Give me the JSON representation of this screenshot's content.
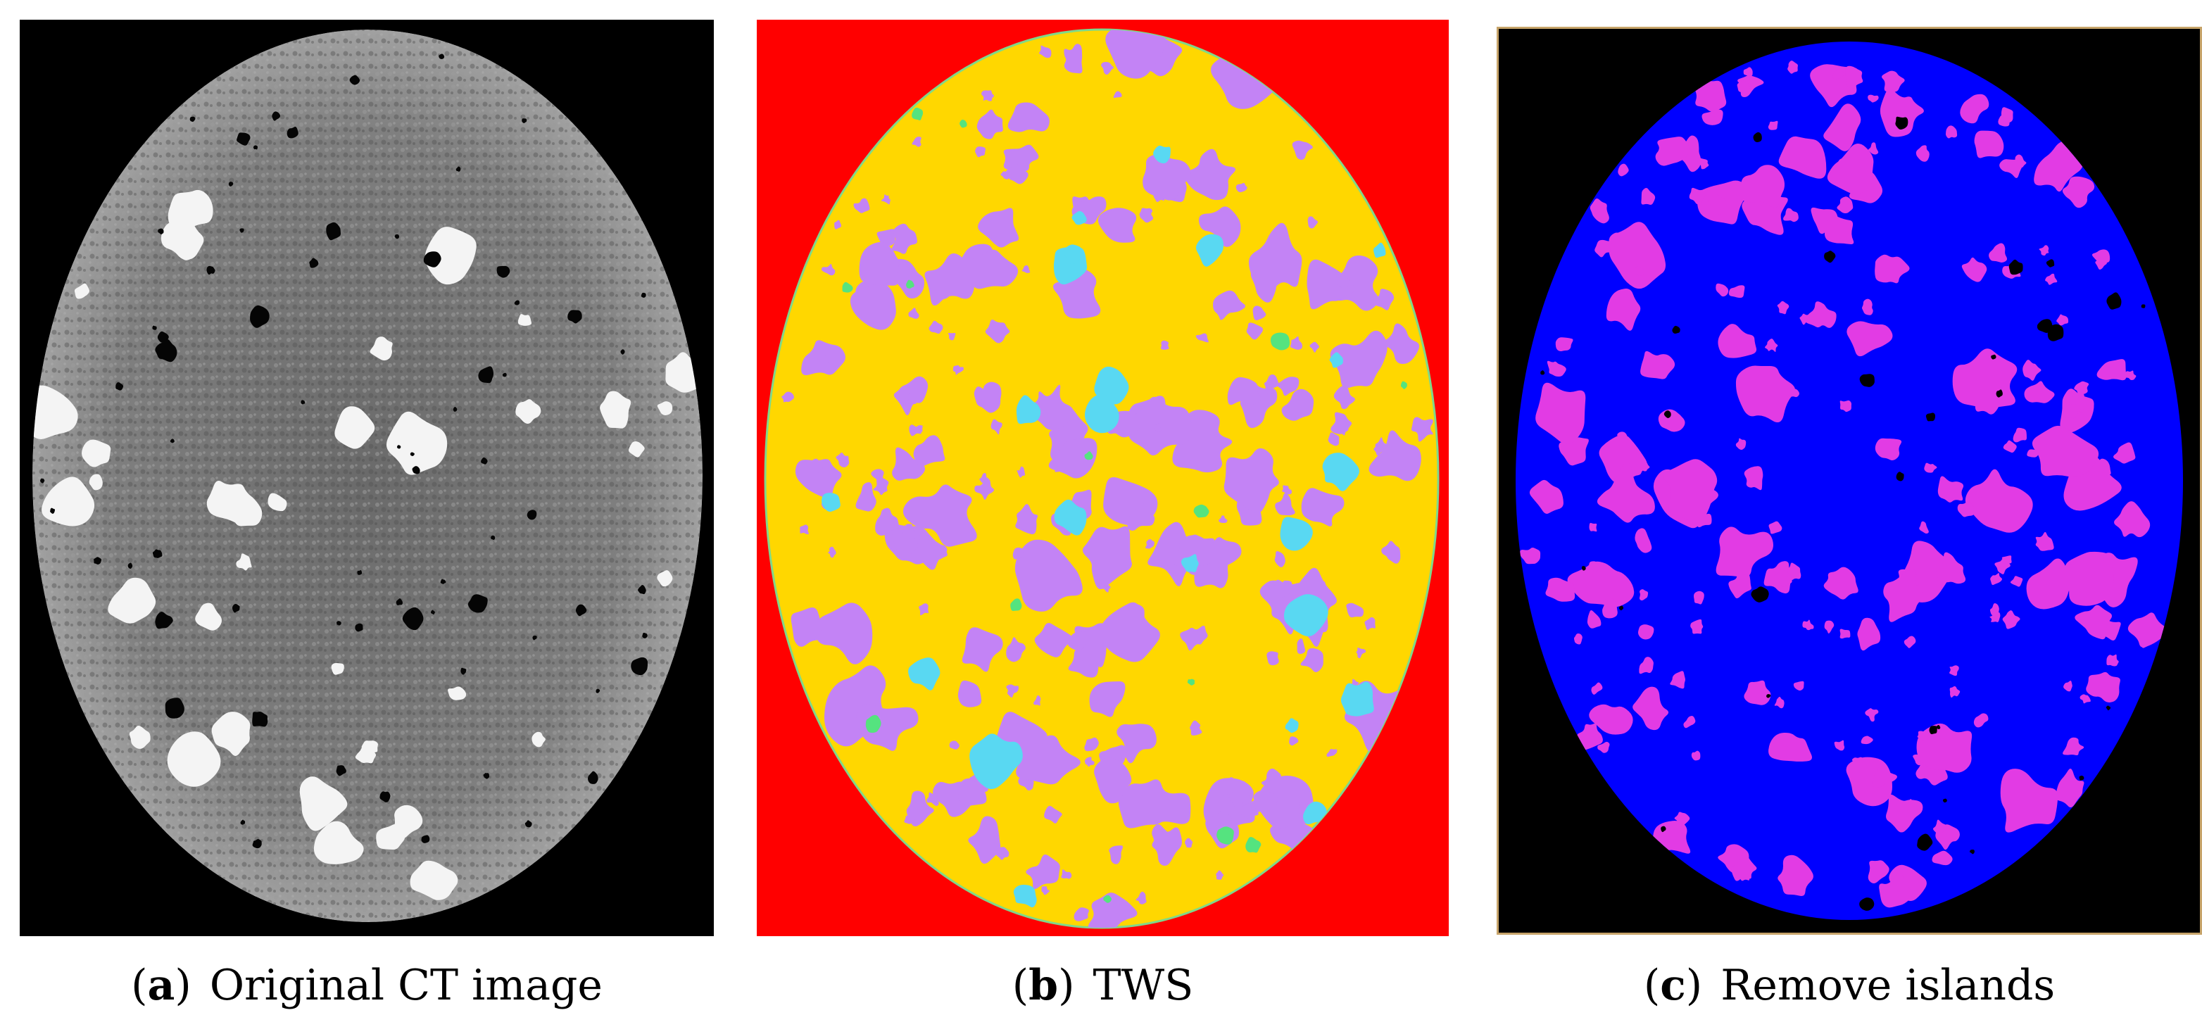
{
  "figure": {
    "panels": [
      {
        "id": "a",
        "paren_open": "(",
        "letter": "a",
        "paren_close": ")",
        "caption": "Original CT image",
        "depicts": "grayscale-ct-slice",
        "colors": {
          "background": "#000000",
          "matrix": "#7a7a7a",
          "aggregate": "#f4f4f4",
          "pore": "#050505"
        }
      },
      {
        "id": "b",
        "paren_open": "(",
        "letter": "b",
        "paren_close": ")",
        "caption": "TWS",
        "depicts": "segmentation-map",
        "colors": {
          "background": "#ff0000",
          "matrix": "#ffd700",
          "phase-1": "#c383f5",
          "phase-2": "#59d8f2",
          "phase-3": "#55e37f"
        }
      },
      {
        "id": "c",
        "paren_open": "(",
        "letter": "c",
        "paren_close": ")",
        "caption": "Remove islands",
        "depicts": "cleaned-segmentation-map",
        "colors": {
          "background": "#000000",
          "matrix": "#0000ff",
          "phase-1": "#e23be4",
          "pore": "#000000"
        }
      }
    ]
  }
}
